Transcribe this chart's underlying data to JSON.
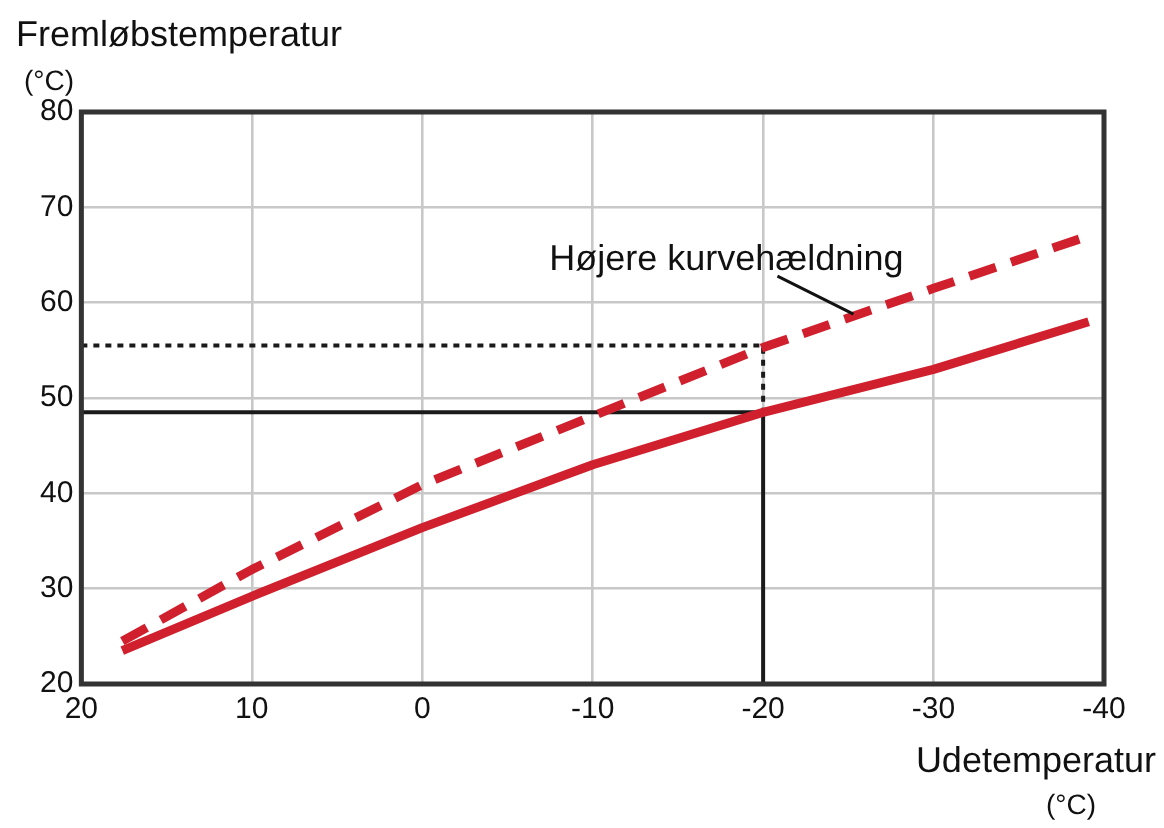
{
  "chart_data": {
    "type": "line",
    "xlabel": "Udetemperatur\n(°C)",
    "ylabel": "Fremløbstemperatur\n(°C)",
    "xlim": [
      20,
      -40
    ],
    "xticks": [
      20,
      10,
      0,
      -10,
      -20,
      -30,
      -40
    ],
    "ylim": [
      20,
      80
    ],
    "yticks": [
      20,
      30,
      40,
      50,
      60,
      70,
      80
    ],
    "grid": true,
    "legend": false,
    "series": [
      {
        "color": "#d0202e",
        "line_style": "solid",
        "x": [
          17.6,
          10,
          0,
          -10,
          -20,
          -30,
          -39.1
        ],
        "values": [
          23.5,
          29.2,
          36.4,
          43,
          48.5,
          53,
          58
        ]
      },
      {
        "color": "#d0202e",
        "line_style": "dashed",
        "x": [
          17.6,
          10,
          0,
          -10,
          -20,
          -30,
          -39.1
        ],
        "values": [
          24.5,
          32,
          40.9,
          48.1,
          55.3,
          61.5,
          67
        ]
      },
      {
        "color": "#1a1a1a",
        "line_style": "solid",
        "x": [
          20,
          -20,
          -20
        ],
        "values": [
          48.5,
          48.5,
          20
        ]
      },
      {
        "color": "#1a1a1a",
        "line_style": "dotted",
        "x": [
          20,
          -20,
          -20
        ],
        "values": [
          55.5,
          55.5,
          48.5
        ]
      }
    ],
    "annotations": [
      {
        "text": "Højere kurvehældning",
        "x": -25.3,
        "y": 58.8
      }
    ]
  }
}
